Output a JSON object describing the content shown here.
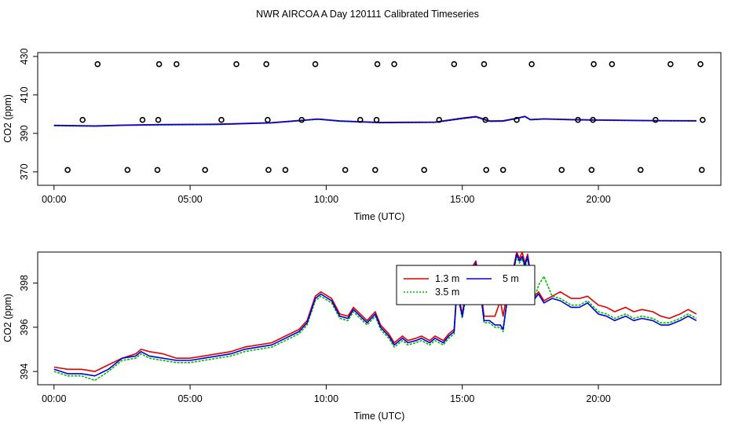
{
  "figure_title": "NWR AIRCOA A  Day 120111  Calibrated Timeseries",
  "colors": {
    "red": "#e00000",
    "green": "#00bb00",
    "blue": "#0000dd",
    "axis": "#000000"
  },
  "chart_data": [
    {
      "type": "scatter",
      "title": "",
      "xlabel": "Time (UTC)",
      "ylabel": "CO2 (ppm)",
      "xlim": [
        -0.6,
        24.5
      ],
      "ylim": [
        363,
        432
      ],
      "xticks": [
        0,
        5,
        10,
        15,
        20
      ],
      "xticklabels": [
        "00:00",
        "05:00",
        "10:00",
        "15:00",
        "20:00"
      ],
      "yticks": [
        370,
        390,
        410,
        430
      ],
      "yticklabels": [
        "370",
        "390",
        "410",
        "430"
      ],
      "markers": {
        "name": "calibration standards",
        "x": [
          0.5,
          1.05,
          1.6,
          2.7,
          3.25,
          3.8,
          3.83,
          3.86,
          4.5,
          5.55,
          6.15,
          6.7,
          7.8,
          7.85,
          7.88,
          8.5,
          9.1,
          9.6,
          10.7,
          11.25,
          11.8,
          11.85,
          11.88,
          12.5,
          13.6,
          14.15,
          14.7,
          15.8,
          15.85,
          15.88,
          16.5,
          17.0,
          17.55,
          18.65,
          19.25,
          19.75,
          19.8,
          19.83,
          20.5,
          21.55,
          22.1,
          22.65,
          23.75,
          23.8,
          23.83
        ],
        "y": [
          371,
          397,
          426,
          371,
          397,
          371,
          397,
          426,
          426,
          371,
          397,
          426,
          426,
          397,
          371,
          371,
          397,
          426,
          371,
          397,
          371,
          397,
          426,
          426,
          371,
          397,
          426,
          426,
          397,
          371,
          371,
          397,
          426,
          371,
          397,
          371,
          397,
          426,
          426,
          371,
          397,
          426,
          426,
          371,
          397
        ]
      },
      "series": [
        {
          "name": "1.3 m",
          "color": "red",
          "x": [
            0,
            1.5,
            2.5,
            4,
            6,
            8,
            9.7,
            10.5,
            12,
            14,
            15,
            15.5,
            16,
            16.5,
            17,
            17.3,
            17.5,
            18,
            19,
            20,
            22,
            23.6
          ],
          "y": [
            394.2,
            393.9,
            394.3,
            394.6,
            394.8,
            395.6,
            397.5,
            396.5,
            395.7,
            395.9,
            398.0,
            398.8,
            396.5,
            396.6,
            397.9,
            398.9,
            397.2,
            397.6,
            397.2,
            397.0,
            396.7,
            396.6
          ]
        },
        {
          "name": "3.5 m",
          "color": "green",
          "x": [
            0,
            1.5,
            2.5,
            4,
            6,
            8,
            9.7,
            10.5,
            12,
            14,
            15,
            15.5,
            16,
            16.5,
            17,
            17.3,
            17.5,
            18,
            19,
            20,
            22,
            23.6
          ],
          "y": [
            394.0,
            393.7,
            394.2,
            394.4,
            394.6,
            395.4,
            397.3,
            396.3,
            395.5,
            395.7,
            397.6,
            398.5,
            396.2,
            396.3,
            397.7,
            398.7,
            397.0,
            397.4,
            397.0,
            396.8,
            396.5,
            396.4
          ]
        },
        {
          "name": "5 m",
          "color": "blue",
          "x": [
            0,
            1.5,
            2.5,
            4,
            6,
            8,
            9.7,
            10.5,
            12,
            14,
            15,
            15.5,
            16,
            16.5,
            17,
            17.3,
            17.5,
            18,
            19,
            20,
            22,
            23.6
          ],
          "y": [
            394.1,
            393.8,
            394.2,
            394.5,
            394.7,
            395.5,
            397.4,
            396.4,
            395.6,
            395.8,
            397.8,
            398.6,
            396.3,
            396.4,
            397.8,
            398.8,
            397.1,
            397.5,
            397.1,
            396.9,
            396.6,
            396.5
          ]
        }
      ]
    },
    {
      "type": "line",
      "title": "",
      "xlabel": "Time (UTC)",
      "ylabel": "CO2 (ppm)",
      "xlim": [
        -0.6,
        24.5
      ],
      "ylim": [
        393.4,
        399.4
      ],
      "xticks": [
        0,
        5,
        10,
        15,
        20
      ],
      "xticklabels": [
        "00:00",
        "05:00",
        "10:00",
        "15:00",
        "20:00"
      ],
      "yticks": [
        394,
        396,
        398
      ],
      "yticklabels": [
        "394",
        "396",
        "398"
      ],
      "legend": {
        "position": "top-center",
        "entries": [
          "1.3 m",
          "3.5 m",
          "5 m"
        ]
      },
      "series": [
        {
          "name": "1.3 m",
          "color": "red",
          "x": [
            0,
            0.5,
            1.0,
            1.5,
            2.0,
            2.5,
            3.0,
            3.2,
            3.5,
            4.0,
            4.5,
            5.0,
            5.5,
            6.0,
            6.5,
            7.0,
            7.5,
            8.0,
            8.5,
            9.0,
            9.3,
            9.6,
            9.8,
            10.2,
            10.5,
            10.8,
            11.0,
            11.5,
            11.8,
            12.0,
            12.3,
            12.5,
            12.8,
            13.0,
            13.3,
            13.5,
            13.8,
            14.0,
            14.3,
            14.5,
            14.7,
            14.8,
            15.0,
            15.2,
            15.4,
            15.5,
            15.7,
            15.8,
            16.0,
            16.2,
            16.4,
            16.5,
            16.7,
            16.8,
            16.9,
            17.0,
            17.1,
            17.2,
            17.3,
            17.4,
            17.5,
            17.6,
            17.8,
            18.0,
            18.3,
            18.6,
            19.0,
            19.3,
            19.6,
            20.0,
            20.3,
            20.6,
            21.0,
            21.3,
            21.6,
            22.0,
            22.3,
            22.6,
            23.0,
            23.3,
            23.6
          ],
          "y": [
            394.2,
            394.1,
            394.1,
            394.0,
            394.3,
            394.6,
            394.8,
            395.0,
            394.9,
            394.8,
            394.6,
            394.6,
            394.7,
            394.8,
            394.9,
            395.1,
            395.2,
            395.3,
            395.6,
            395.9,
            396.3,
            397.4,
            397.6,
            397.3,
            396.6,
            396.5,
            396.9,
            396.3,
            396.7,
            396.1,
            395.7,
            395.3,
            395.6,
            395.4,
            395.5,
            395.6,
            395.4,
            395.6,
            395.4,
            395.7,
            395.9,
            397.8,
            396.6,
            398.1,
            398.8,
            399.0,
            397.5,
            396.5,
            396.5,
            396.5,
            397.2,
            396.5,
            397.9,
            398.0,
            398.8,
            399.4,
            399.1,
            399.4,
            398.9,
            399.3,
            398.5,
            397.3,
            397.6,
            397.2,
            397.4,
            397.6,
            397.3,
            397.3,
            397.4,
            397.0,
            396.9,
            396.7,
            396.9,
            396.7,
            396.8,
            396.7,
            396.5,
            396.4,
            396.6,
            396.8,
            396.6
          ]
        },
        {
          "name": "3.5 m",
          "color": "green",
          "x": [
            0,
            0.5,
            1.0,
            1.5,
            2.0,
            2.5,
            3.0,
            3.2,
            3.5,
            4.0,
            4.5,
            5.0,
            5.5,
            6.0,
            6.5,
            7.0,
            7.5,
            8.0,
            8.5,
            9.0,
            9.3,
            9.6,
            9.8,
            10.2,
            10.5,
            10.8,
            11.0,
            11.5,
            11.8,
            12.0,
            12.3,
            12.5,
            12.8,
            13.0,
            13.3,
            13.5,
            13.8,
            14.0,
            14.3,
            14.5,
            14.7,
            14.8,
            15.0,
            15.2,
            15.4,
            15.5,
            15.7,
            15.8,
            16.0,
            16.2,
            16.4,
            16.5,
            16.7,
            16.8,
            16.9,
            17.0,
            17.1,
            17.2,
            17.3,
            17.4,
            17.5,
            17.6,
            17.8,
            18.0,
            18.3,
            18.6,
            19.0,
            19.3,
            19.6,
            20.0,
            20.3,
            20.6,
            21.0,
            21.3,
            21.6,
            22.0,
            22.3,
            22.6,
            23.0,
            23.3,
            23.6
          ],
          "y": [
            394.0,
            393.8,
            393.8,
            393.6,
            394.0,
            394.5,
            394.6,
            394.8,
            394.6,
            394.5,
            394.4,
            394.4,
            394.5,
            394.6,
            394.7,
            394.9,
            395.0,
            395.1,
            395.4,
            395.7,
            396.1,
            397.2,
            397.4,
            397.1,
            396.4,
            396.3,
            396.7,
            396.1,
            396.5,
            395.9,
            395.5,
            395.1,
            395.4,
            395.2,
            395.3,
            395.4,
            395.2,
            395.4,
            395.2,
            395.5,
            395.7,
            397.6,
            396.4,
            397.9,
            398.5,
            398.8,
            397.2,
            396.2,
            396.2,
            396.0,
            396.0,
            395.8,
            397.6,
            397.7,
            398.6,
            399.2,
            398.9,
            399.1,
            398.7,
            399.1,
            398.3,
            397.1,
            397.9,
            398.3,
            397.4,
            397.3,
            397.0,
            397.0,
            397.2,
            396.7,
            396.6,
            396.4,
            396.6,
            396.4,
            396.5,
            396.4,
            396.2,
            396.2,
            396.4,
            396.6,
            396.4
          ]
        },
        {
          "name": "5 m",
          "color": "blue",
          "x": [
            0,
            0.5,
            1.0,
            1.5,
            2.0,
            2.5,
            3.0,
            3.2,
            3.5,
            4.0,
            4.5,
            5.0,
            5.5,
            6.0,
            6.5,
            7.0,
            7.5,
            8.0,
            8.5,
            9.0,
            9.3,
            9.6,
            9.8,
            10.2,
            10.5,
            10.8,
            11.0,
            11.5,
            11.8,
            12.0,
            12.3,
            12.5,
            12.8,
            13.0,
            13.3,
            13.5,
            13.8,
            14.0,
            14.3,
            14.5,
            14.7,
            14.8,
            15.0,
            15.2,
            15.4,
            15.5,
            15.7,
            15.8,
            16.0,
            16.2,
            16.4,
            16.5,
            16.7,
            16.8,
            16.9,
            17.0,
            17.1,
            17.2,
            17.3,
            17.4,
            17.5,
            17.6,
            17.8,
            18.0,
            18.3,
            18.6,
            19.0,
            19.3,
            19.6,
            20.0,
            20.3,
            20.6,
            21.0,
            21.3,
            21.6,
            22.0,
            22.3,
            22.6,
            23.0,
            23.3,
            23.6
          ],
          "y": [
            394.1,
            393.9,
            393.9,
            393.8,
            394.1,
            394.6,
            394.7,
            394.9,
            394.7,
            394.6,
            394.5,
            394.5,
            394.6,
            394.7,
            394.8,
            395.0,
            395.1,
            395.2,
            395.5,
            395.8,
            396.2,
            397.3,
            397.5,
            397.2,
            396.5,
            396.4,
            396.8,
            396.2,
            396.6,
            396.0,
            395.6,
            395.2,
            395.5,
            395.3,
            395.4,
            395.5,
            395.3,
            395.5,
            395.3,
            395.6,
            395.8,
            397.7,
            396.5,
            398.0,
            398.6,
            398.9,
            397.3,
            396.3,
            396.3,
            396.1,
            396.1,
            395.9,
            397.7,
            397.8,
            398.7,
            399.3,
            399.0,
            399.2,
            398.8,
            399.2,
            398.4,
            397.2,
            397.5,
            397.1,
            397.3,
            397.2,
            396.9,
            396.9,
            397.1,
            396.6,
            396.5,
            396.3,
            396.5,
            396.3,
            396.4,
            396.3,
            396.1,
            396.1,
            396.3,
            396.5,
            396.3
          ]
        }
      ]
    }
  ]
}
